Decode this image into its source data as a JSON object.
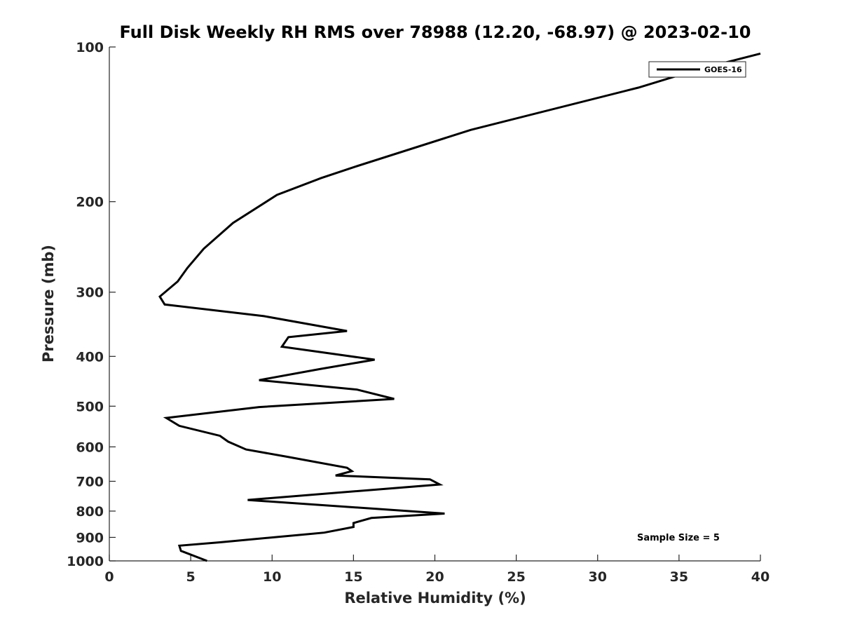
{
  "chart_data": {
    "type": "line",
    "title": "Full Disk Weekly RH RMS over 78988 (12.20, -68.97) @ 2023-02-10",
    "xlabel": "Relative Humidity (%)",
    "ylabel": "Pressure (mb)",
    "xlim": [
      0,
      40
    ],
    "ylim": [
      100,
      1000
    ],
    "y_scale": "log",
    "y_reversed": true,
    "x_ticks": [
      0,
      5,
      10,
      15,
      20,
      25,
      30,
      35,
      40
    ],
    "y_ticks": [
      100,
      200,
      300,
      400,
      500,
      600,
      700,
      800,
      900,
      1000
    ],
    "grid": false,
    "legend_position": "top-right",
    "annotation": "Sample Size = 5",
    "series": [
      {
        "name": "GOES-16",
        "color": "#000000",
        "points": [
          [
            40.0,
            103
          ],
          [
            36.0,
            111
          ],
          [
            32.5,
            120
          ],
          [
            22.2,
            145
          ],
          [
            15.1,
            171
          ],
          [
            13.0,
            180
          ],
          [
            10.3,
            194
          ],
          [
            7.6,
            220
          ],
          [
            5.8,
            247
          ],
          [
            4.8,
            269
          ],
          [
            4.2,
            286
          ],
          [
            3.1,
            306
          ],
          [
            3.4,
            317
          ],
          [
            9.5,
            334
          ],
          [
            14.6,
            357
          ],
          [
            11.0,
            367
          ],
          [
            10.6,
            383
          ],
          [
            16.3,
            406
          ],
          [
            13.0,
            423
          ],
          [
            9.2,
            445
          ],
          [
            15.2,
            464
          ],
          [
            17.5,
            484
          ],
          [
            9.2,
            502
          ],
          [
            3.5,
            527
          ],
          [
            4.3,
            546
          ],
          [
            6.8,
            571
          ],
          [
            7.3,
            586
          ],
          [
            8.4,
            607
          ],
          [
            10.9,
            627
          ],
          [
            14.6,
            659
          ],
          [
            14.9,
            669
          ],
          [
            13.9,
            682
          ],
          [
            19.7,
            694
          ],
          [
            20.3,
            710
          ],
          [
            8.5,
            761
          ],
          [
            20.6,
            809
          ],
          [
            16.1,
            825
          ],
          [
            15.0,
            844
          ],
          [
            15.0,
            859
          ],
          [
            13.2,
            881
          ],
          [
            6.8,
            920
          ],
          [
            4.3,
            934
          ],
          [
            4.4,
            956
          ],
          [
            6.0,
            1000
          ]
        ]
      }
    ]
  }
}
